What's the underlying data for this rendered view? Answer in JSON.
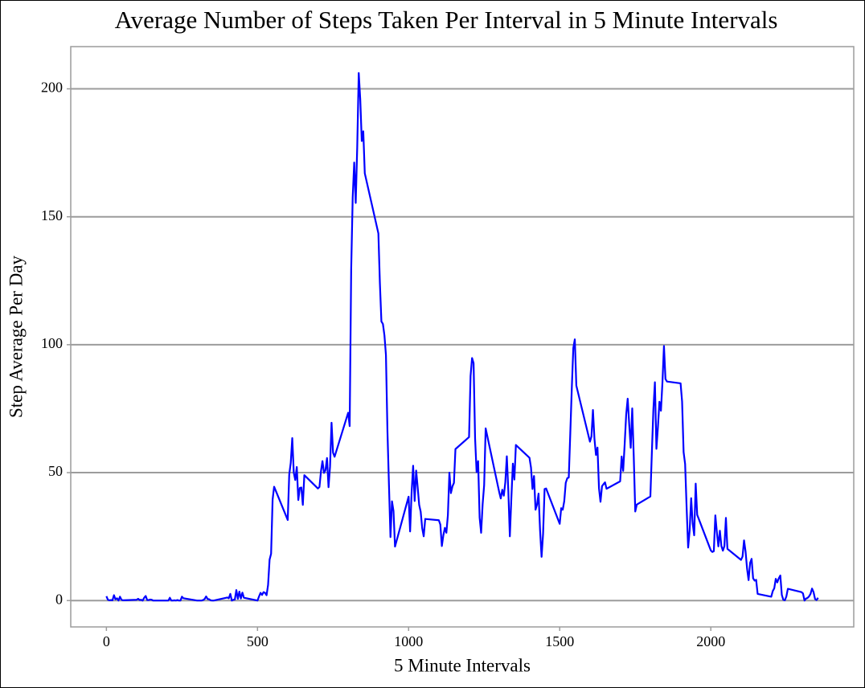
{
  "chart_data": {
    "type": "line",
    "title": "Average Number of Steps  Taken Per Interval in 5 Minute Intervals",
    "x_label": "5 Minute Intervals",
    "y_label": "Step Average Per Day",
    "xlim": [
      -118,
      2473
    ],
    "xticks": [
      0,
      500,
      1000,
      1500,
      2000
    ],
    "ylim": [
      -10.3,
      216.5
    ],
    "yticks": [
      0,
      50,
      100,
      150,
      200
    ],
    "grid": true,
    "x": [
      0,
      5,
      10,
      15,
      20,
      25,
      30,
      35,
      40,
      45,
      50,
      55,
      100,
      105,
      110,
      115,
      120,
      125,
      130,
      135,
      140,
      145,
      150,
      155,
      200,
      205,
      210,
      215,
      220,
      225,
      230,
      235,
      240,
      245,
      250,
      255,
      300,
      305,
      310,
      315,
      320,
      325,
      330,
      335,
      340,
      345,
      350,
      355,
      400,
      405,
      410,
      415,
      420,
      425,
      430,
      435,
      440,
      445,
      450,
      455,
      500,
      505,
      510,
      515,
      520,
      525,
      530,
      535,
      540,
      545,
      550,
      555,
      600,
      605,
      610,
      615,
      620,
      625,
      630,
      635,
      640,
      645,
      650,
      655,
      700,
      705,
      710,
      715,
      720,
      725,
      730,
      735,
      740,
      745,
      750,
      755,
      800,
      805,
      810,
      815,
      820,
      825,
      830,
      835,
      840,
      845,
      850,
      855,
      900,
      905,
      910,
      915,
      920,
      925,
      930,
      935,
      940,
      945,
      950,
      955,
      1000,
      1005,
      1010,
      1015,
      1020,
      1025,
      1030,
      1035,
      1040,
      1045,
      1050,
      1055,
      1100,
      1105,
      1110,
      1115,
      1120,
      1125,
      1130,
      1135,
      1140,
      1145,
      1150,
      1155,
      1200,
      1205,
      1210,
      1215,
      1220,
      1225,
      1230,
      1235,
      1240,
      1245,
      1250,
      1255,
      1300,
      1305,
      1310,
      1315,
      1320,
      1325,
      1330,
      1335,
      1340,
      1345,
      1350,
      1355,
      1400,
      1405,
      1410,
      1415,
      1420,
      1425,
      1430,
      1435,
      1440,
      1445,
      1450,
      1455,
      1500,
      1505,
      1510,
      1515,
      1520,
      1525,
      1530,
      1535,
      1540,
      1545,
      1550,
      1555,
      1600,
      1605,
      1610,
      1615,
      1620,
      1625,
      1630,
      1635,
      1640,
      1645,
      1650,
      1655,
      1700,
      1705,
      1710,
      1715,
      1720,
      1725,
      1730,
      1735,
      1740,
      1745,
      1750,
      1755,
      1800,
      1805,
      1810,
      1815,
      1820,
      1825,
      1830,
      1835,
      1840,
      1845,
      1850,
      1855,
      1900,
      1905,
      1910,
      1915,
      1920,
      1925,
      1930,
      1935,
      1940,
      1945,
      1950,
      1955,
      2000,
      2005,
      2010,
      2015,
      2020,
      2025,
      2030,
      2035,
      2040,
      2045,
      2050,
      2055,
      2100,
      2105,
      2110,
      2115,
      2120,
      2125,
      2130,
      2135,
      2140,
      2145,
      2150,
      2155,
      2200,
      2205,
      2210,
      2215,
      2220,
      2225,
      2230,
      2235,
      2240,
      2245,
      2250,
      2255,
      2300,
      2305,
      2310,
      2315,
      2320,
      2325,
      2330,
      2335,
      2340,
      2345,
      2350,
      2355
    ],
    "series": [
      {
        "color": "#0000ff",
        "values": [
          1.7,
          0.3,
          0.1,
          0.2,
          0.1,
          2.1,
          0.5,
          0.9,
          0,
          1.5,
          0.3,
          0.1,
          0.3,
          0.7,
          0.2,
          0.3,
          0,
          1.1,
          1.8,
          0.2,
          0.2,
          0.4,
          0.3,
          0,
          0,
          0,
          1.1,
          0,
          0,
          0.1,
          0,
          0.2,
          0,
          0,
          1.5,
          0.9,
          0,
          0,
          0,
          0,
          0.2,
          0.6,
          1.6,
          0.6,
          0.5,
          0.1,
          0,
          0,
          1.2,
          0.9,
          2.6,
          0,
          0.3,
          0.4,
          4.1,
          0.7,
          3.5,
          0.8,
          3.1,
          1.1,
          0,
          1.6,
          3.0,
          2.2,
          3.3,
          3.0,
          2.1,
          6.1,
          16.0,
          18.3,
          39.5,
          44.5,
          31.5,
          49.3,
          53.8,
          63.5,
          50.0,
          47.1,
          52.2,
          39.3,
          44.0,
          44.2,
          37.4,
          49.0,
          43.8,
          44.4,
          50.5,
          54.5,
          49.9,
          51.0,
          55.7,
          44.3,
          52.3,
          69.5,
          57.8,
          56.2,
          73.4,
          68.2,
          129.4,
          157.5,
          171.2,
          155.4,
          177.3,
          206.2,
          195.9,
          179.6,
          183.4,
          167.0,
          143.5,
          124.0,
          109.1,
          108.1,
          103.7,
          96.0,
          66.2,
          45.2,
          24.8,
          38.8,
          35.0,
          21.1,
          40.6,
          27.0,
          42.4,
          52.7,
          38.9,
          50.8,
          44.3,
          37.4,
          34.7,
          28.3,
          25.1,
          31.9,
          31.4,
          29.7,
          21.3,
          25.5,
          28.4,
          26.5,
          33.4,
          50.0,
          42.0,
          44.6,
          46.0,
          59.2,
          63.9,
          87.7,
          94.8,
          92.8,
          63.4,
          50.2,
          54.5,
          32.4,
          26.5,
          37.7,
          45.1,
          67.3,
          42.3,
          39.9,
          43.3,
          41.0,
          46.2,
          56.4,
          42.8,
          25.1,
          40.0,
          53.5,
          47.3,
          60.8,
          55.8,
          52.0,
          43.6,
          48.7,
          35.5,
          37.5,
          41.8,
          27.5,
          17.1,
          26.1,
          43.6,
          43.8,
          30.0,
          36.1,
          35.5,
          38.8,
          46.0,
          47.8,
          48.1,
          65.3,
          82.9,
          98.7,
          102.1,
          84.0,
          62.1,
          64.1,
          74.5,
          63.2,
          56.9,
          59.8,
          43.9,
          38.6,
          44.7,
          45.5,
          46.2,
          43.7,
          46.6,
          56.3,
          50.7,
          61.2,
          72.7,
          78.9,
          68.9,
          59.7,
          75.1,
          56.5,
          34.8,
          37.5,
          40.7,
          58.0,
          74.7,
          85.3,
          59.3,
          67.8,
          77.7,
          74.2,
          85.3,
          99.5,
          86.6,
          85.6,
          84.9,
          77.8,
          58.0,
          53.4,
          36.3,
          20.7,
          27.4,
          40.0,
          30.2,
          25.5,
          45.7,
          33.5,
          19.6,
          19.0,
          19.3,
          33.3,
          26.8,
          21.2,
          27.3,
          21.3,
          19.5,
          21.3,
          32.3,
          20.2,
          15.9,
          17.2,
          23.5,
          19.2,
          12.5,
          8.0,
          14.7,
          16.3,
          8.7,
          7.8,
          8.1,
          2.6,
          1.5,
          3.7,
          4.8,
          8.5,
          7.1,
          8.7,
          9.8,
          2.2,
          0.3,
          0.1,
          1.6,
          4.6,
          3.3,
          2.8,
          0,
          0.8,
          1.0,
          1.6,
          2.6,
          4.7,
          3.3,
          0.6,
          0.2,
          1.1
        ]
      }
    ]
  }
}
